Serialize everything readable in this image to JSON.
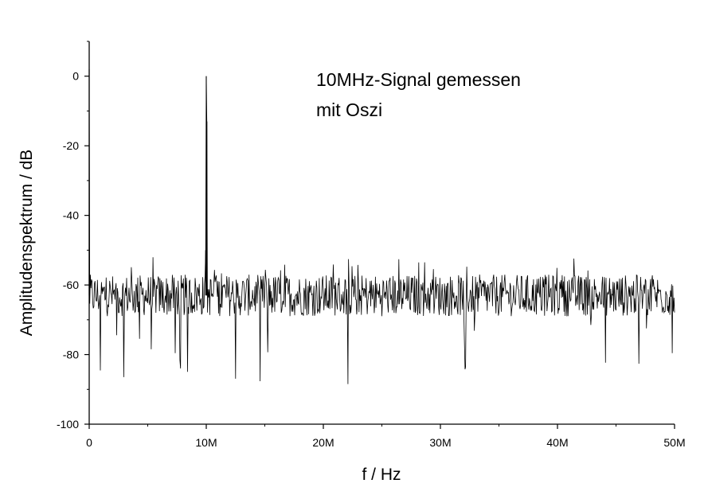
{
  "chart_data": {
    "type": "line",
    "xlabel": "f / Hz",
    "ylabel": "Amplitudenspektrum / dB",
    "xlim": [
      0,
      50000000
    ],
    "ylim": [
      -100,
      10
    ],
    "x_ticks": [
      0,
      10000000,
      20000000,
      30000000,
      40000000,
      50000000
    ],
    "x_tick_labels": [
      "0",
      "10M",
      "20M",
      "30M",
      "40M",
      "50M"
    ],
    "y_ticks": [
      0,
      -20,
      -40,
      -60,
      -80,
      -100
    ],
    "y_tick_labels": [
      "0",
      "-20",
      "-40",
      "-60",
      "-80",
      "-100"
    ],
    "annotation_lines": [
      "10MHz-Signal gemessen",
      "mit Oszi"
    ],
    "grid": false,
    "legend": "none",
    "line_color": "#000000",
    "series": [
      {
        "noise_floor_db": -63,
        "noise_min_db": -89,
        "noise_max_db": -52,
        "x_start": 0,
        "x_end": 50000000,
        "x_step": 50000,
        "peaks": [
          {
            "x": 0,
            "y": 2
          },
          {
            "x": 10000000,
            "y": 0
          },
          {
            "x": 10050000,
            "y": -13
          },
          {
            "x": 9950000,
            "y": -50
          }
        ]
      }
    ]
  }
}
